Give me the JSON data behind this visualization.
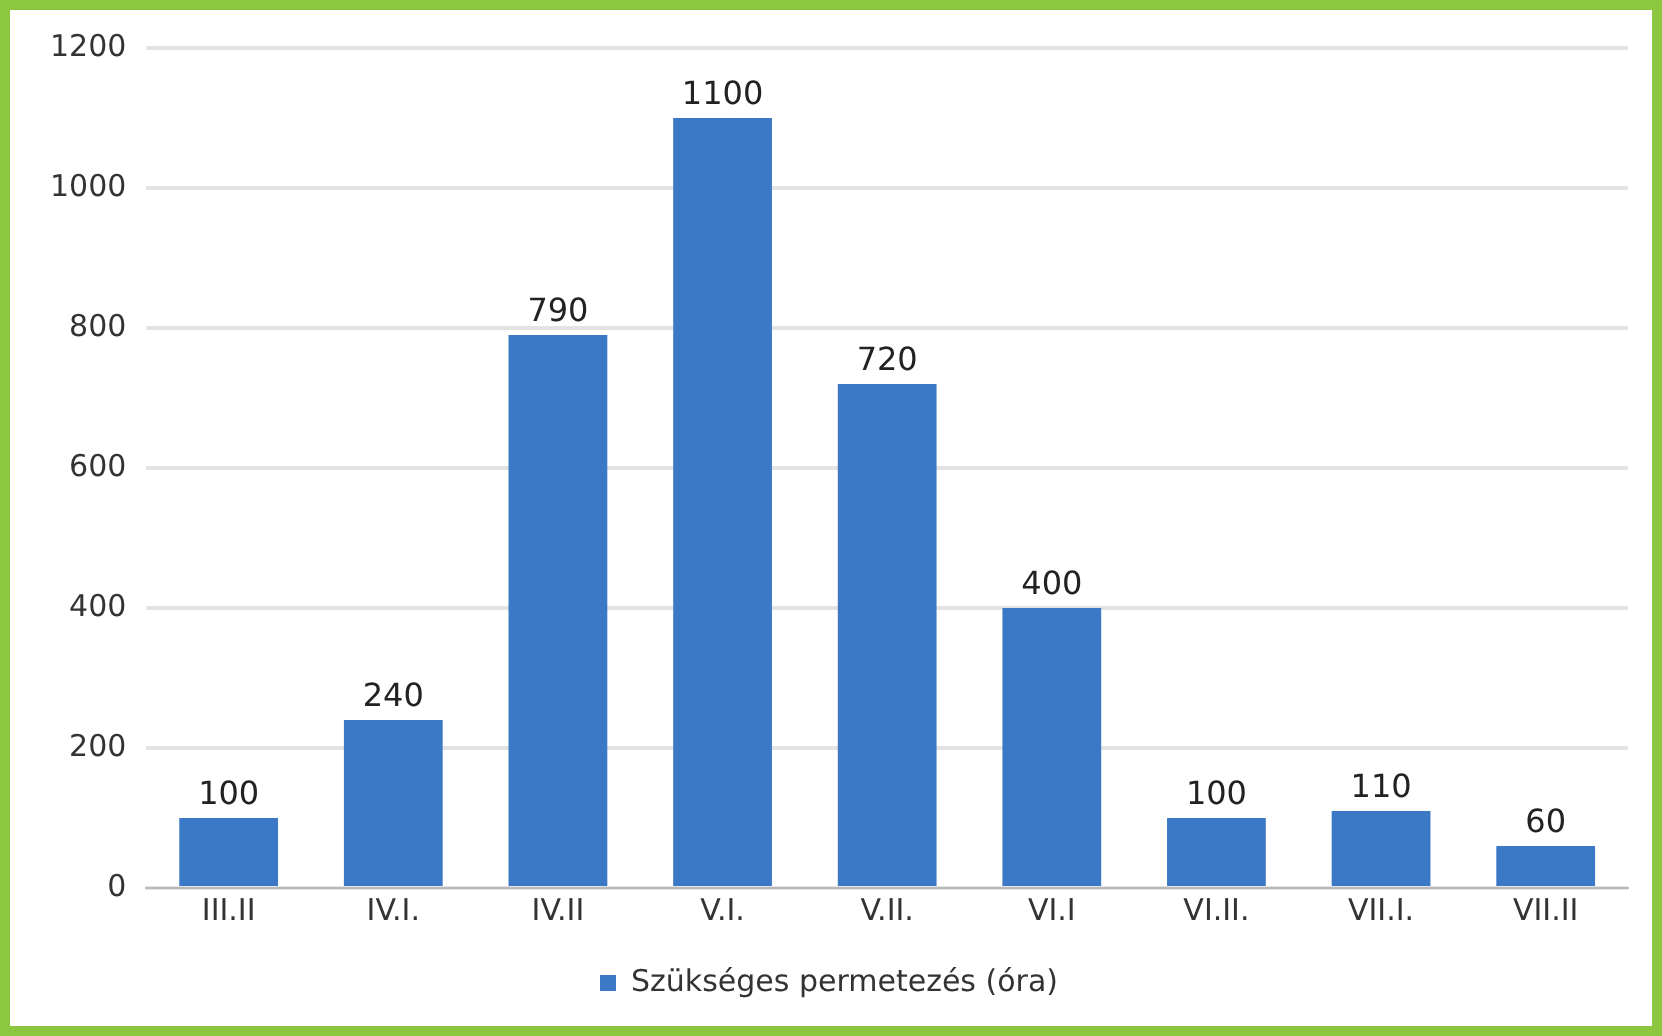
{
  "chart_data": {
    "type": "bar",
    "categories": [
      "III.II",
      "IV.I.",
      "IV.II",
      "V.I.",
      "V.II.",
      "VI.I",
      "VI.II.",
      "VII.I.",
      "VII.II"
    ],
    "series": [
      {
        "name": "Szükséges permetezés (óra)",
        "color": "#3b79c6",
        "values": [
          100,
          240,
          790,
          1100,
          720,
          400,
          100,
          110,
          60
        ]
      }
    ],
    "ylim": [
      0,
      1200
    ],
    "yticks": [
      0,
      200,
      400,
      600,
      800,
      1000,
      1200
    ],
    "grid": "y",
    "legend": "bottom",
    "data_labels": true
  }
}
